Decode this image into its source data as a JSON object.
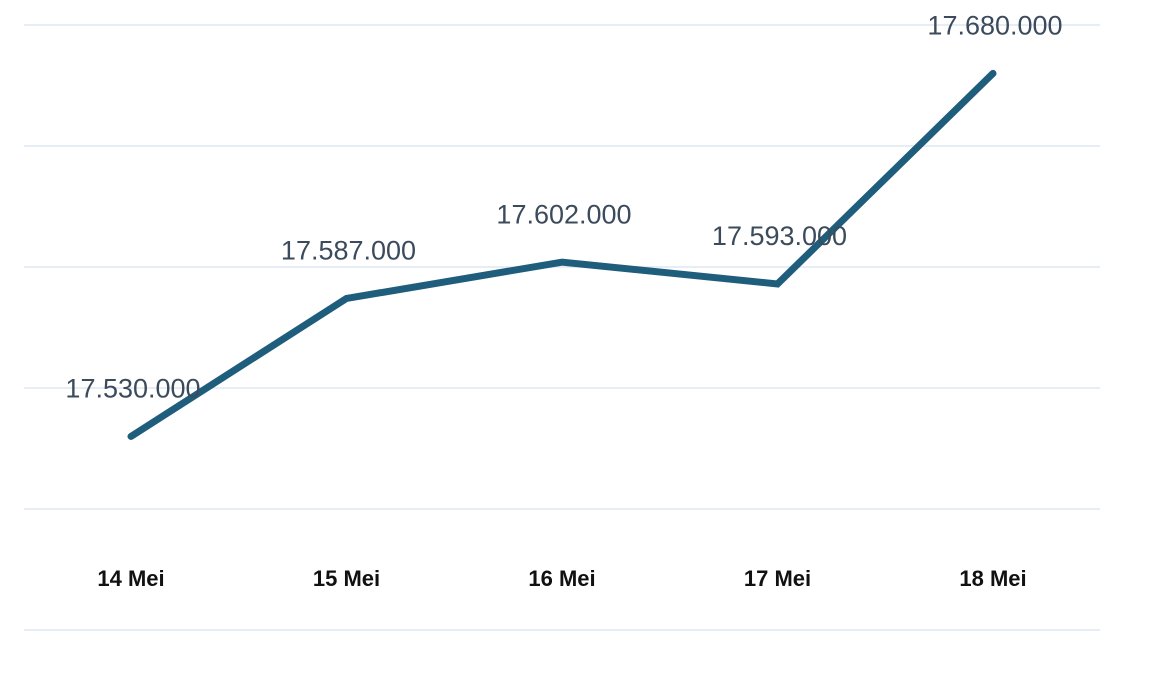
{
  "chart_data": {
    "type": "line",
    "categories": [
      "14 Mei",
      "15 Mei",
      "16 Mei",
      "17 Mei",
      "18 Mei"
    ],
    "series": [
      {
        "color": "#1f5d7c",
        "values": [
          17530000,
          17587000,
          17602000,
          17593000,
          17680000
        ],
        "value_labels": [
          "17.530.000",
          "17.587.000",
          "17.602.000",
          "17.593.000",
          "17.680.000"
        ]
      }
    ],
    "ylim": [
      17500000,
      17700000
    ],
    "yticks": [
      17500000,
      17550000,
      17600000,
      17650000,
      17700000
    ],
    "grid": true
  }
}
